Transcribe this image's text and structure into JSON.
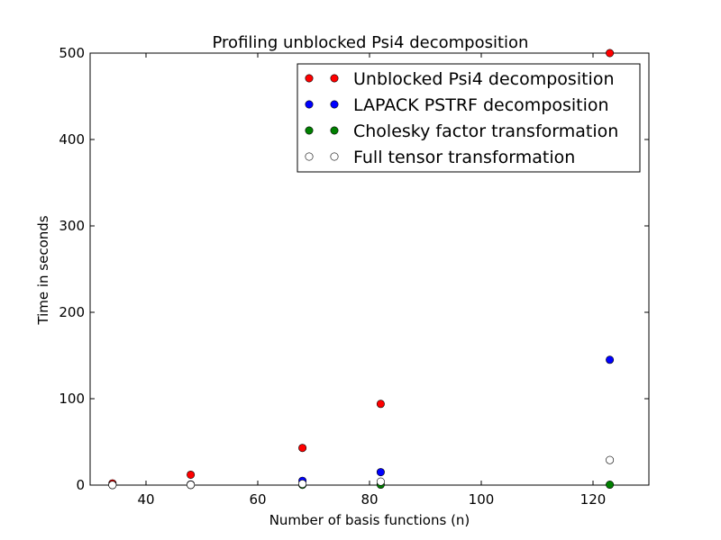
{
  "chart_data": {
    "type": "scatter",
    "title": "Profiling unblocked Psi4 decomposition",
    "xlabel": "Number of basis functions (n)",
    "ylabel": "Time in seconds",
    "xlim": [
      30,
      130
    ],
    "ylim": [
      0,
      500
    ],
    "xticks": [
      40,
      60,
      80,
      100,
      120
    ],
    "yticks": [
      0,
      100,
      200,
      300,
      400,
      500
    ],
    "grid": false,
    "legend_position": "top-right",
    "series": [
      {
        "name": "Unblocked Psi4 decomposition",
        "color": "#ff0000",
        "filled": true,
        "points": [
          [
            34,
            2
          ],
          [
            48,
            12
          ],
          [
            68,
            43
          ],
          [
            82,
            94
          ],
          [
            123,
            500
          ]
        ]
      },
      {
        "name": "LAPACK PSTRF decomposition",
        "color": "#0000ff",
        "filled": true,
        "points": [
          [
            34,
            0.3
          ],
          [
            48,
            0.8
          ],
          [
            68,
            5
          ],
          [
            82,
            15
          ],
          [
            123,
            145
          ]
        ]
      },
      {
        "name": "Cholesky factor transformation",
        "color": "#008000",
        "filled": true,
        "points": [
          [
            34,
            0.05
          ],
          [
            48,
            0.1
          ],
          [
            68,
            0.3
          ],
          [
            82,
            0.5
          ],
          [
            123,
            0.5
          ]
        ]
      },
      {
        "name": "Full tensor transformation",
        "color": "#ffffff",
        "filled": false,
        "points": [
          [
            34,
            0.1
          ],
          [
            48,
            0.3
          ],
          [
            68,
            1.5
          ],
          [
            82,
            4
          ],
          [
            123,
            29
          ]
        ]
      }
    ]
  }
}
